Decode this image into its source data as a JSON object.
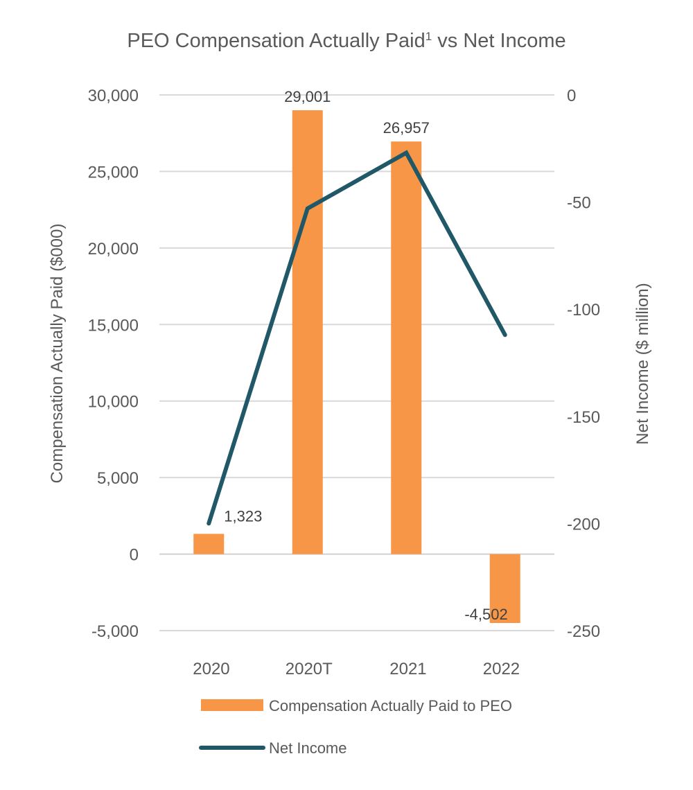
{
  "chart_data": {
    "type": "bar+line",
    "title": "PEO Compensation Actually Paid",
    "title_superscript": "1",
    "title_suffix": " vs Net Income",
    "categories": [
      "2020",
      "2020T",
      "2021",
      "2022"
    ],
    "series": [
      {
        "name": "Compensation Actually Paid to PEO",
        "type": "bar",
        "axis": "left",
        "values": [
          1323,
          29001,
          26957,
          -4502
        ],
        "labels": [
          "1,323",
          "29,001",
          "26,957",
          "-4,502"
        ],
        "color": "#F79646"
      },
      {
        "name": "Net Income",
        "type": "line",
        "axis": "right",
        "values": [
          -200,
          -53,
          -27,
          -112
        ],
        "color": "#215868"
      }
    ],
    "ylabel": "Compensation Actually Paid ($000)",
    "y2label": "Net Income ($ million)",
    "ylim": [
      -5000,
      30000
    ],
    "y2lim": [
      -250,
      0
    ],
    "yticks": [
      "30,000",
      "25,000",
      "20,000",
      "15,000",
      "10,000",
      "5,000",
      "0",
      "-5,000"
    ],
    "y2ticks": [
      "0",
      "-50",
      "-100",
      "-150",
      "-200",
      "-250"
    ],
    "grid": true,
    "legend": "bottom"
  }
}
